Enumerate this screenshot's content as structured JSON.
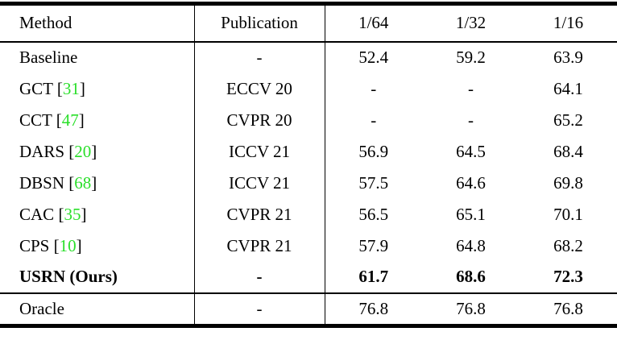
{
  "colors": {
    "citation": "#2adf2a",
    "rule": "#000000",
    "text": "#000000",
    "background": "#ffffff"
  },
  "table": {
    "header": {
      "method": "Method",
      "publication": "Publication",
      "c64": "1/64",
      "c32": "1/32",
      "c16": "1/16"
    },
    "rows": [
      {
        "method": "Baseline",
        "lb": "",
        "cite": "",
        "rb": "",
        "publication": "-",
        "v64": "52.4",
        "v32": "59.2",
        "v16": "63.9"
      },
      {
        "method": "GCT ",
        "lb": "[",
        "cite": "31",
        "rb": "]",
        "publication": "ECCV 20",
        "v64": "-",
        "v32": "-",
        "v16": "64.1"
      },
      {
        "method": "CCT ",
        "lb": "[",
        "cite": "47",
        "rb": "]",
        "publication": "CVPR 20",
        "v64": "-",
        "v32": "-",
        "v16": "65.2"
      },
      {
        "method": "DARS ",
        "lb": "[",
        "cite": "20",
        "rb": "]",
        "publication": "ICCV 21",
        "v64": "56.9",
        "v32": "64.5",
        "v16": "68.4"
      },
      {
        "method": "DBSN ",
        "lb": "[",
        "cite": "68",
        "rb": "]",
        "publication": "ICCV 21",
        "v64": "57.5",
        "v32": "64.6",
        "v16": "69.8"
      },
      {
        "method": "CAC ",
        "lb": "[",
        "cite": "35",
        "rb": "]",
        "publication": "CVPR 21",
        "v64": "56.5",
        "v32": "65.1",
        "v16": "70.1"
      },
      {
        "method": "CPS ",
        "lb": "[",
        "cite": "10",
        "rb": "]",
        "publication": "CVPR 21",
        "v64": "57.9",
        "v32": "64.8",
        "v16": "68.2"
      },
      {
        "method": "USRN (Ours)",
        "lb": "",
        "cite": "",
        "rb": "",
        "publication": "-",
        "v64": "61.7",
        "v32": "68.6",
        "v16": "72.3"
      },
      {
        "method": "Oracle",
        "lb": "",
        "cite": "",
        "rb": "",
        "publication": "-",
        "v64": "76.8",
        "v32": "76.8",
        "v16": "76.8"
      }
    ]
  },
  "chart_data": {
    "type": "table",
    "title": "",
    "columns": [
      "Method",
      "Publication",
      "1/64",
      "1/32",
      "1/16"
    ],
    "rows": [
      [
        "Baseline",
        "-",
        52.4,
        59.2,
        63.9
      ],
      [
        "GCT [31]",
        "ECCV 20",
        null,
        null,
        64.1
      ],
      [
        "CCT [47]",
        "CVPR 20",
        null,
        null,
        65.2
      ],
      [
        "DARS [20]",
        "ICCV 21",
        56.9,
        64.5,
        68.4
      ],
      [
        "DBSN [68]",
        "ICCV 21",
        57.5,
        64.6,
        69.8
      ],
      [
        "CAC [35]",
        "CVPR 21",
        56.5,
        65.1,
        70.1
      ],
      [
        "CPS [10]",
        "CVPR 21",
        57.9,
        64.8,
        68.2
      ],
      [
        "USRN (Ours)",
        "-",
        61.7,
        68.6,
        72.3
      ],
      [
        "Oracle",
        "-",
        76.8,
        76.8,
        76.8
      ]
    ],
    "bold_row": "USRN (Ours)"
  }
}
